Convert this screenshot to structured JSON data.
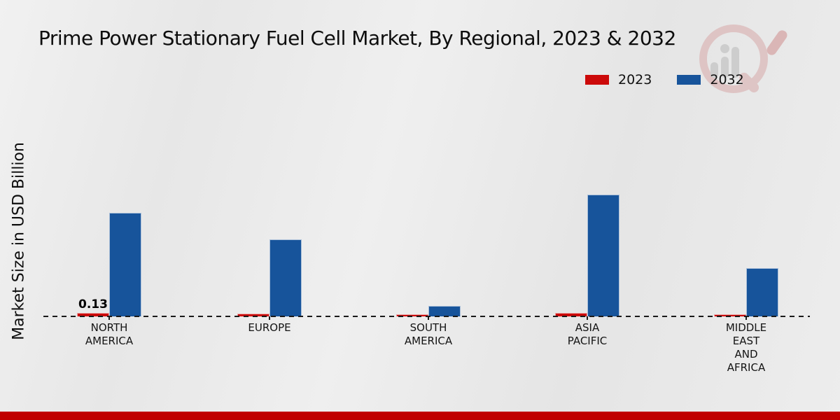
{
  "chart_data": {
    "type": "bar",
    "title": "Prime Power Stationary Fuel Cell Market, By Regional, 2023 & 2032",
    "ylabel": "Market Size in USD Billion",
    "xlabel": "",
    "categories": [
      "NORTH\nAMERICA",
      "EUROPE",
      "SOUTH\nAMERICA",
      "ASIA\nPACIFIC",
      "MIDDLE\nEAST\nAND\nAFRICA"
    ],
    "series": [
      {
        "name": "2023",
        "color": "#cc0a0a",
        "values": [
          0.13,
          0.1,
          0.07,
          0.12,
          0.08
        ]
      },
      {
        "name": "2032",
        "color": "#17549b",
        "values": [
          3.57,
          2.66,
          0.36,
          4.2,
          1.66
        ]
      }
    ],
    "bar_labels": [
      {
        "series_index": 0,
        "category_index": 0,
        "text": "0.13"
      }
    ],
    "legend_position": "top-right",
    "grid": false,
    "baseline_style": "dashed",
    "ylim": [
      0,
      4.5
    ]
  },
  "branding": {
    "watermark_icon": "magnifier-bar-chart-logo",
    "footer_color": "#c00000"
  }
}
